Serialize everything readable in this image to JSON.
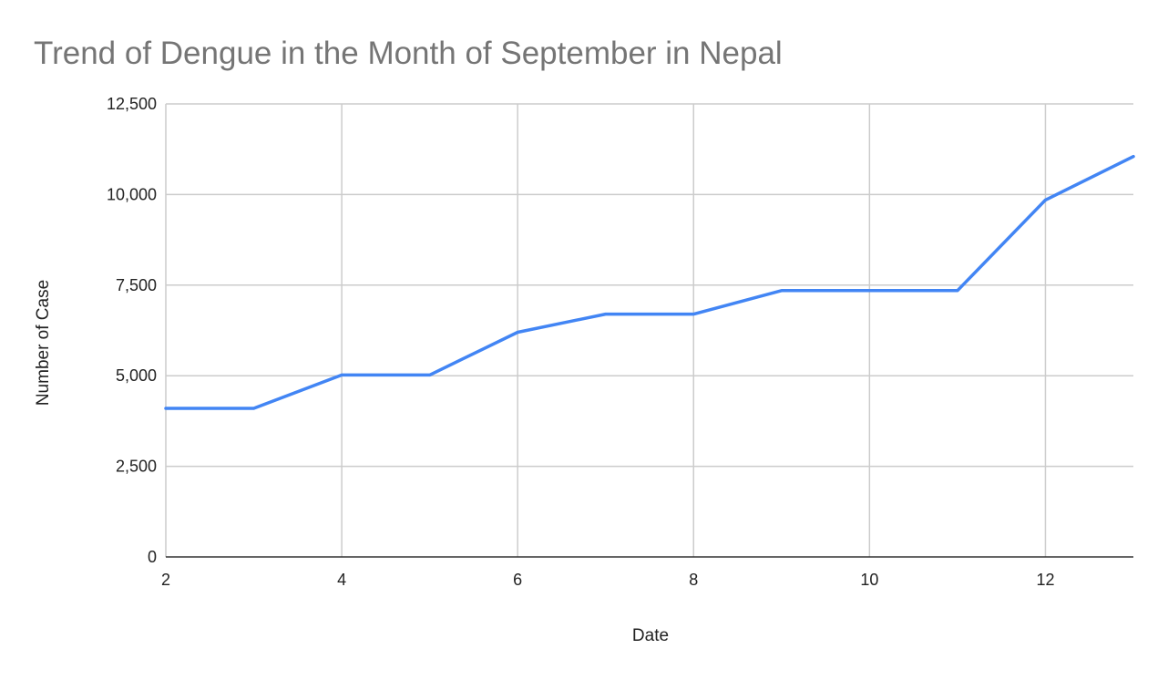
{
  "chart_data": {
    "type": "line",
    "title": "Trend of Dengue in the Month of September in Nepal",
    "xlabel": "Date",
    "ylabel": "Number of Case",
    "x": [
      2,
      3,
      4,
      5,
      6,
      7,
      8,
      9,
      10,
      11,
      12,
      13
    ],
    "series": [
      {
        "values": [
          4100,
          4100,
          5020,
          5020,
          6200,
          6700,
          6700,
          7350,
          7350,
          7350,
          9850,
          11050
        ],
        "color": "#4285f4"
      }
    ],
    "xlim": [
      2,
      13
    ],
    "ylim": [
      0,
      12500
    ],
    "xticks": [
      2,
      4,
      6,
      8,
      10,
      12
    ],
    "xtick_labels": [
      "2",
      "4",
      "6",
      "8",
      "10",
      "12"
    ],
    "yticks": [
      0,
      2500,
      5000,
      7500,
      10000,
      12500
    ],
    "ytick_labels": [
      "0",
      "2,500",
      "5,000",
      "7,500",
      "10,000",
      "12,500"
    ],
    "grid": true,
    "legend": "none"
  }
}
